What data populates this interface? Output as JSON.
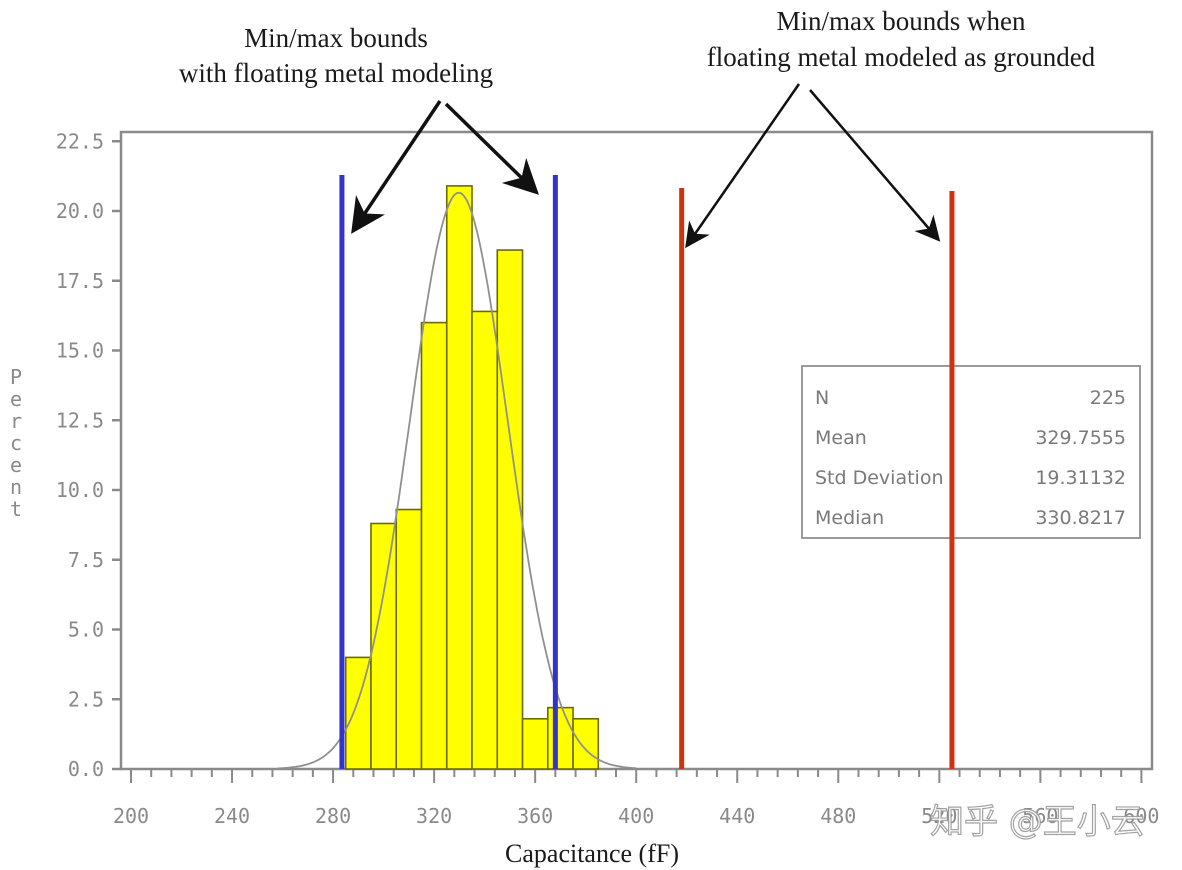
{
  "chart_data": {
    "type": "bar",
    "subtype": "histogram",
    "title": "",
    "xlabel": "Capacitance (fF)",
    "ylabel": "Percent",
    "xlim": [
      200,
      600
    ],
    "ylim": [
      0,
      22.5
    ],
    "x_ticks": [
      200,
      240,
      280,
      320,
      360,
      400,
      440,
      480,
      520,
      560,
      600
    ],
    "x_tick_labels": [
      "200",
      "240",
      "280",
      "320",
      "360",
      "400",
      "440",
      "480",
      "520",
      "560",
      "600"
    ],
    "y_ticks": [
      0,
      2.5,
      5,
      7.5,
      10,
      12.5,
      15,
      17.5,
      20,
      22.5
    ],
    "y_tick_labels": [
      "0.0",
      "2.5",
      "5.0",
      "7.5",
      "10.0",
      "12.5",
      "15.0",
      "17.5",
      "20.0",
      "22.5"
    ],
    "bin_width": 10,
    "categories": [
      290,
      300,
      310,
      320,
      330,
      340,
      350,
      360,
      370,
      380
    ],
    "values": [
      4.0,
      8.8,
      9.3,
      16.0,
      20.9,
      16.4,
      18.6,
      1.8,
      2.2,
      1.8
    ],
    "bar_color": "#ffff00",
    "bar_edge_color": "#6b6b00",
    "fit_curve": {
      "type": "normal",
      "mean": 329.7555,
      "std": 19.31132,
      "color": "#909090"
    },
    "reference_lines": [
      {
        "name": "floating-min",
        "x": 283.5,
        "color": "#3333cc",
        "group": "floating metal modeling"
      },
      {
        "name": "floating-max",
        "x": 368,
        "color": "#3333cc",
        "group": "floating metal modeling"
      },
      {
        "name": "grounded-min",
        "x": 418,
        "color": "#cc3311",
        "group": "floating metal modeled as grounded"
      },
      {
        "name": "grounded-max",
        "x": 525,
        "color": "#cc3311",
        "group": "floating metal modeled as grounded"
      }
    ],
    "annotations": [
      {
        "lines": [
          "Min/max bounds",
          "with floating metal modeling"
        ],
        "targets": [
          "floating-min",
          "floating-max"
        ]
      },
      {
        "lines": [
          "Min/max bounds when",
          "floating metal modeled as grounded"
        ],
        "targets": [
          "grounded-min",
          "grounded-max"
        ]
      }
    ],
    "stats_box": [
      {
        "label": "N",
        "value": "225"
      },
      {
        "label": "Mean",
        "value": "329.7555"
      },
      {
        "label": "Std Deviation",
        "value": "19.31132"
      },
      {
        "label": "Median",
        "value": "330.8217"
      }
    ],
    "grid": false,
    "legend": null
  },
  "annotation_left": {
    "line1": "Min/max bounds",
    "line2": "with floating metal modeling"
  },
  "annotation_right": {
    "line1": "Min/max bounds when",
    "line2": "floating metal modeled as grounded"
  },
  "axis": {
    "xlabel": "Capacitance (fF)",
    "ylabel": "Percent"
  },
  "stats": {
    "n_label": "N",
    "n_value": "225",
    "mean_label": "Mean",
    "mean_value": "329.7555",
    "std_label": "Std Deviation",
    "std_value": "19.31132",
    "median_label": "Median",
    "median_value": "330.8217"
  },
  "watermark": "知乎 @王小云",
  "colors": {
    "bar": "#ffff00",
    "bar_edge": "#6b6b00",
    "blue_line": "#3333cc",
    "red_line": "#cc3311",
    "axis": "#8a8a8a",
    "curve": "#909090"
  }
}
